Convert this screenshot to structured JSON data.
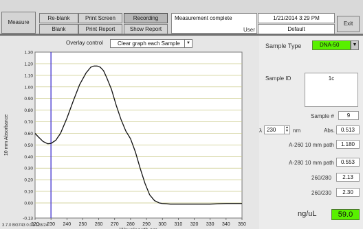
{
  "toolbar": {
    "measure_label": "Measure",
    "reblank_label": "Re-blank",
    "blank_label": "Blank",
    "print_screen_label": "Print Screen",
    "print_report_label": "Print Report",
    "recording_label": "Recording",
    "show_report_label": "Show Report",
    "status_text": "Measurement complete",
    "user_label": "User",
    "datetime": "1/21/2014 3:29 PM",
    "user_value": "Default",
    "exit_label": "Exit"
  },
  "chart_panel": {
    "overlay_label": "Overlay control",
    "overlay_value": "Clear graph each Sample",
    "footer_id": "3.7.0 BG743 0.01/128/24"
  },
  "right_panel": {
    "sample_type_label": "Sample Type",
    "sample_type_value": "DNA-50",
    "sample_id_label": "Sample ID",
    "sample_id_value": "1c",
    "sample_num_label": "Sample #",
    "sample_num_value": "9",
    "lambda_symbol": "λ",
    "lambda_value": "230",
    "lambda_unit": "nm",
    "abs_label": "Abs.",
    "abs_value": "0.513",
    "a260_label": "A-260 10 mm path",
    "a260_value": "1.180",
    "a280_label": "A-280 10 mm path",
    "a280_value": "0.553",
    "r260_280_label": "260/280",
    "r260_280_value": "2.13",
    "r260_230_label": "260/230",
    "r260_230_value": "2.30",
    "conc_label": "ng/uL",
    "conc_value": "59.0"
  },
  "colors": {
    "accent_green": "#58f000",
    "curve": "#111111",
    "marker_line": "#4a3ad0",
    "gridline": "#c8c880"
  },
  "chart_data": {
    "type": "line",
    "xlabel": "Wavelength nm",
    "ylabel": "10 mm Absorbance",
    "xlim": [
      220,
      350
    ],
    "ylim": [
      -0.13,
      1.3
    ],
    "x_ticks": [
      220,
      230,
      240,
      250,
      260,
      270,
      280,
      290,
      300,
      310,
      320,
      330,
      340,
      350
    ],
    "y_ticks": [
      -0.13,
      0.0,
      0.1,
      0.2,
      0.3,
      0.4,
      0.5,
      0.6,
      0.7,
      0.8,
      0.9,
      1.0,
      1.1,
      1.2,
      1.3
    ],
    "y_tick_labels": [
      "-0.13",
      "0.00",
      "0.10",
      "0.20",
      "0.30",
      "0.40",
      "0.50",
      "0.60",
      "0.70",
      "0.80",
      "0.90",
      "1.00",
      "1.10",
      "1.20",
      "1.30"
    ],
    "grid": true,
    "marker_x": 230,
    "series": [
      {
        "x": [
          220,
          222,
          225,
          228,
          230,
          233,
          236,
          240,
          244,
          248,
          252,
          255,
          257,
          259,
          261,
          263,
          265,
          268,
          271,
          274,
          277,
          280,
          283,
          286,
          289,
          292,
          295,
          298,
          300,
          305,
          310,
          320,
          330,
          340,
          350
        ],
        "y": [
          0.6,
          0.57,
          0.53,
          0.51,
          0.513,
          0.54,
          0.6,
          0.73,
          0.88,
          1.02,
          1.12,
          1.17,
          1.18,
          1.18,
          1.17,
          1.14,
          1.08,
          0.98,
          0.84,
          0.72,
          0.62,
          0.553,
          0.44,
          0.3,
          0.17,
          0.07,
          0.02,
          0.0,
          -0.005,
          -0.01,
          -0.01,
          -0.01,
          -0.01,
          -0.005,
          -0.005
        ]
      }
    ]
  }
}
